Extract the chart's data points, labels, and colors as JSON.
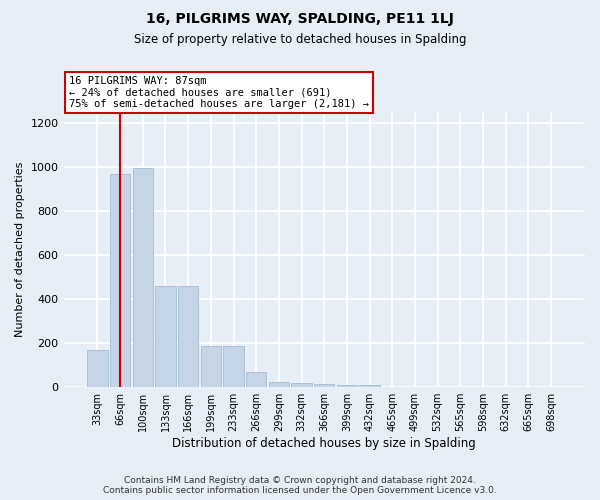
{
  "title": "16, PILGRIMS WAY, SPALDING, PE11 1LJ",
  "subtitle": "Size of property relative to detached houses in Spalding",
  "xlabel": "Distribution of detached houses by size in Spalding",
  "ylabel": "Number of detached properties",
  "categories": [
    "33sqm",
    "66sqm",
    "100sqm",
    "133sqm",
    "166sqm",
    "199sqm",
    "233sqm",
    "266sqm",
    "299sqm",
    "332sqm",
    "366sqm",
    "399sqm",
    "432sqm",
    "465sqm",
    "499sqm",
    "532sqm",
    "565sqm",
    "598sqm",
    "632sqm",
    "665sqm",
    "698sqm"
  ],
  "values": [
    170,
    970,
    995,
    460,
    460,
    185,
    185,
    70,
    25,
    20,
    15,
    10,
    10,
    0,
    0,
    0,
    0,
    0,
    0,
    0,
    0
  ],
  "bar_color": "#c5d5e5",
  "bar_edgecolor": "#9ab5cc",
  "vline_color": "#cc0000",
  "vline_x": 1.0,
  "annotation_text": "16 PILGRIMS WAY: 87sqm\n← 24% of detached houses are smaller (691)\n75% of semi-detached houses are larger (2,181) →",
  "annotation_box_edgecolor": "#cc0000",
  "annotation_box_facecolor": "#ffffff",
  "ylim": [
    0,
    1250
  ],
  "yticks": [
    0,
    200,
    400,
    600,
    800,
    1000,
    1200
  ],
  "footer": "Contains HM Land Registry data © Crown copyright and database right 2024.\nContains public sector information licensed under the Open Government Licence v3.0.",
  "bg_color": "#e8eef5",
  "plot_bg_color": "#e8eef5",
  "grid_color": "#ffffff",
  "title_fontsize": 10,
  "subtitle_fontsize": 8.5,
  "ylabel_fontsize": 8,
  "xlabel_fontsize": 8.5,
  "tick_fontsize": 7,
  "footer_fontsize": 6.5
}
